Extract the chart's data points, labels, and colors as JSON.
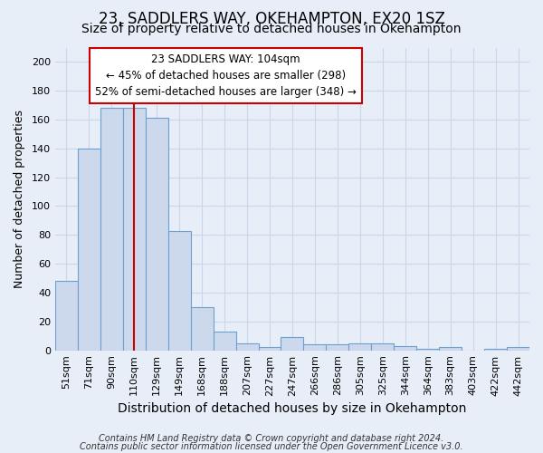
{
  "title1": "23, SADDLERS WAY, OKEHAMPTON, EX20 1SZ",
  "title2": "Size of property relative to detached houses in Okehampton",
  "xlabel": "Distribution of detached houses by size in Okehampton",
  "ylabel": "Number of detached properties",
  "categories": [
    "51sqm",
    "71sqm",
    "90sqm",
    "110sqm",
    "129sqm",
    "149sqm",
    "168sqm",
    "188sqm",
    "207sqm",
    "227sqm",
    "247sqm",
    "266sqm",
    "286sqm",
    "305sqm",
    "325sqm",
    "344sqm",
    "364sqm",
    "383sqm",
    "403sqm",
    "422sqm",
    "442sqm"
  ],
  "values": [
    48,
    140,
    168,
    168,
    161,
    83,
    30,
    13,
    5,
    2,
    9,
    4,
    4,
    5,
    5,
    3,
    1,
    2,
    0,
    1,
    2
  ],
  "bar_color": "#ccd9ed",
  "bar_edge_color": "#6ca0d0",
  "red_line_index": 3,
  "annotation_line1": "23 SADDLERS WAY: 104sqm",
  "annotation_line2": "← 45% of detached houses are smaller (298)",
  "annotation_line3": "52% of semi-detached houses are larger (348) →",
  "annotation_box_color": "white",
  "annotation_box_edge_color": "#cc0000",
  "red_line_color": "#cc0000",
  "ylim": [
    0,
    210
  ],
  "yticks": [
    0,
    20,
    40,
    60,
    80,
    100,
    120,
    140,
    160,
    180,
    200
  ],
  "grid_color": "#c8d8e8",
  "background_color": "#e8eef8",
  "footer_line1": "Contains HM Land Registry data © Crown copyright and database right 2024.",
  "footer_line2": "Contains public sector information licensed under the Open Government Licence v3.0.",
  "title1_fontsize": 12,
  "title2_fontsize": 10,
  "xlabel_fontsize": 10,
  "ylabel_fontsize": 9,
  "tick_fontsize": 8,
  "annotation_fontsize": 8.5,
  "footer_fontsize": 7
}
